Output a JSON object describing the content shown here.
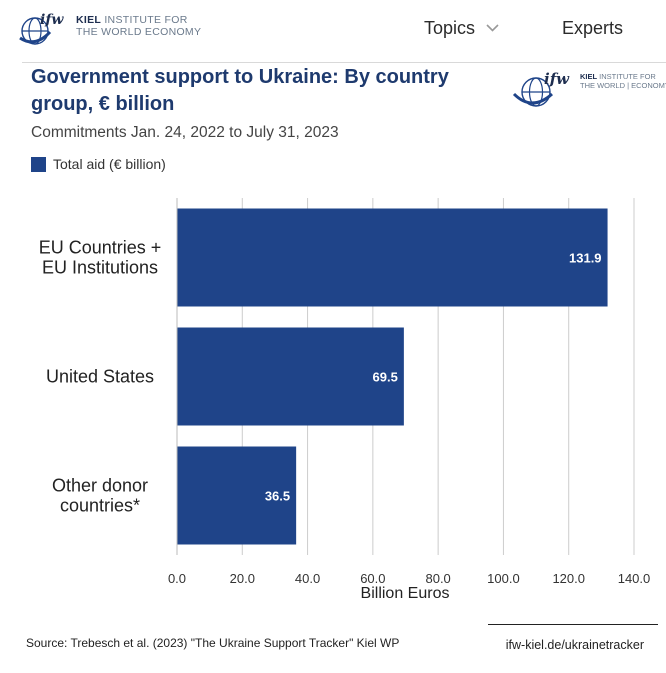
{
  "header": {
    "brand_mark": "ifw",
    "brand_line1": "KIEL",
    "brand_line1_rest": " INSTITUTE FOR",
    "brand_line2": "THE WORLD ECONOMY",
    "nav": {
      "topics": "Topics",
      "experts": "Experts"
    }
  },
  "chart_logo": {
    "mark": "ifw",
    "line1": "KIEL",
    "line1_rest": " INSTITUTE FOR",
    "line2": "THE WORLD | ECONOMY"
  },
  "footer": {
    "source": "Source: Trebesch et al. (2023) \"The Ukraine Support Tracker\" Kiel WP",
    "link": "ifw-kiel.de/ukrainetracker"
  },
  "colors": {
    "bar": "#1f4489",
    "title": "#1e3a6e",
    "grid": "#cccccc"
  },
  "icons": {
    "globe": "globe-logo-icon",
    "chevron": "chevron-down-icon"
  },
  "chart_data": {
    "type": "bar",
    "orientation": "horizontal",
    "title": "Government support to Ukraine: By country group, € billion",
    "subtitle": "Commitments Jan. 24, 2022 to July 31, 2023",
    "xlabel": "Billion Euros",
    "ylabel": "",
    "xlim": [
      0,
      140
    ],
    "x_ticks": [
      "0.0",
      "20.0",
      "40.0",
      "60.0",
      "80.0",
      "100.0",
      "120.0",
      "140.0"
    ],
    "grid": true,
    "legend_position": "top-left",
    "categories": [
      [
        "EU Countries +",
        "EU Institutions"
      ],
      [
        "United States"
      ],
      [
        "Other donor",
        "countries*"
      ]
    ],
    "series": [
      {
        "name": "Total aid (€ billion)",
        "values": [
          131.9,
          69.5,
          36.5
        ],
        "labels": [
          "131.9",
          "69.5",
          "36.5"
        ]
      }
    ]
  }
}
